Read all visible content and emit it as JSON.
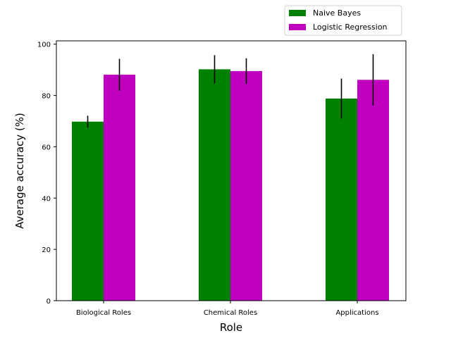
{
  "chart_data": {
    "type": "bar",
    "title": "",
    "xlabel": "Role",
    "ylabel": "Average accuracy (%)",
    "categories": [
      "Biological Roles",
      "Chemical Roles",
      "Applications"
    ],
    "ylim": [
      0,
      100
    ],
    "yticks": [
      0,
      20,
      40,
      60,
      80,
      100
    ],
    "grid": false,
    "legend_position": "top-right, above plot",
    "series": [
      {
        "name": "Naive Bayes",
        "color": "#008000",
        "values": [
          69.8,
          90.2,
          78.8
        ],
        "errors": [
          2.3,
          5.5,
          7.8
        ]
      },
      {
        "name": "Logistic Regression",
        "color": "#bf00bf",
        "values": [
          88.1,
          89.5,
          86.1
        ],
        "errors": [
          6.2,
          5.0,
          10.0
        ]
      }
    ]
  }
}
